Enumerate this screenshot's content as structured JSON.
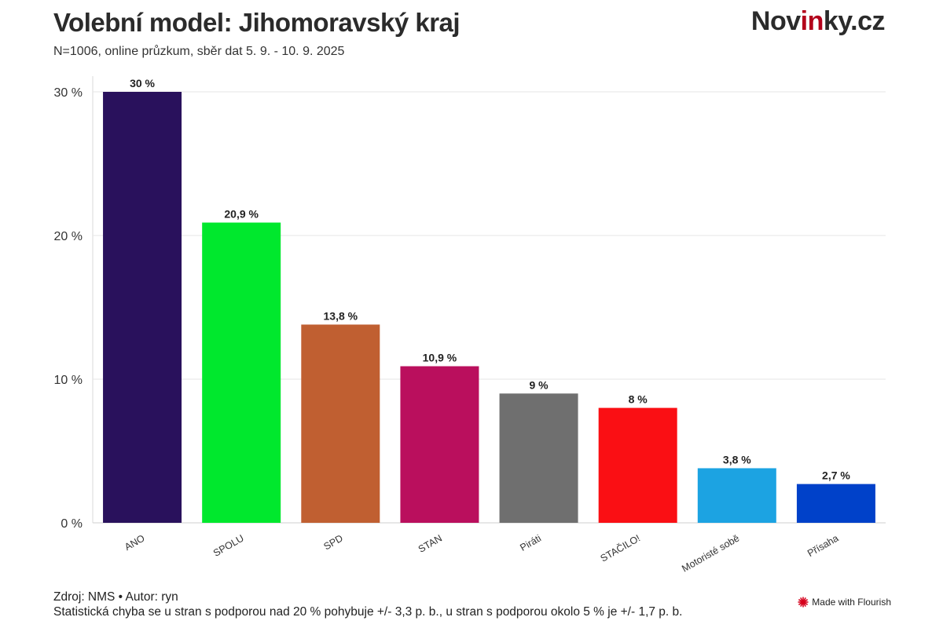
{
  "header": {
    "title": "Volební model: Jihomoravský kraj",
    "subtitle": "N=1006, online průzkum, sběr dat 5. 9. - 10. 9. 2025"
  },
  "brand": {
    "logo_text_start": "Nov",
    "logo_text_accent": "in",
    "logo_text_end": "ky.cz",
    "accent_color": "#b3001b"
  },
  "footer": {
    "source": "Zdroj: NMS • Autor: ryn",
    "note": "Statistická chyba se u stran s podporou nad 20 % pohybuje +/- 3,3 p. b., u stran s podporou okolo 5 % je +/- 1,7 p. b.",
    "made_with": "Made with Flourish",
    "made_with_icon": "flourish-starburst-icon",
    "made_with_icon_color": "#d6001c"
  },
  "chart_data": {
    "type": "bar",
    "categories": [
      "ANO",
      "SPOLU",
      "SPD",
      "STAN",
      "Piráti",
      "STAČILO!",
      "Motoristé sobě",
      "Přísaha"
    ],
    "values": [
      30,
      20.9,
      13.8,
      10.9,
      9,
      8,
      3.8,
      2.7
    ],
    "value_labels": [
      "30 %",
      "20,9 %",
      "13,8 %",
      "10,9 %",
      "9 %",
      "8 %",
      "3,8 %",
      "2,7 %"
    ],
    "colors": [
      "#29115c",
      "#00e82d",
      "#c05f31",
      "#ba0f5d",
      "#6f6f6f",
      "#fa0f14",
      "#1ca3e2",
      "#0041c9"
    ],
    "ylim": [
      0,
      30
    ],
    "yticks": [
      0,
      10,
      20,
      30
    ],
    "ytick_labels": [
      "0 %",
      "10 %",
      "20 %",
      "30 %"
    ],
    "grid": true,
    "xlabel": "",
    "ylabel": ""
  }
}
